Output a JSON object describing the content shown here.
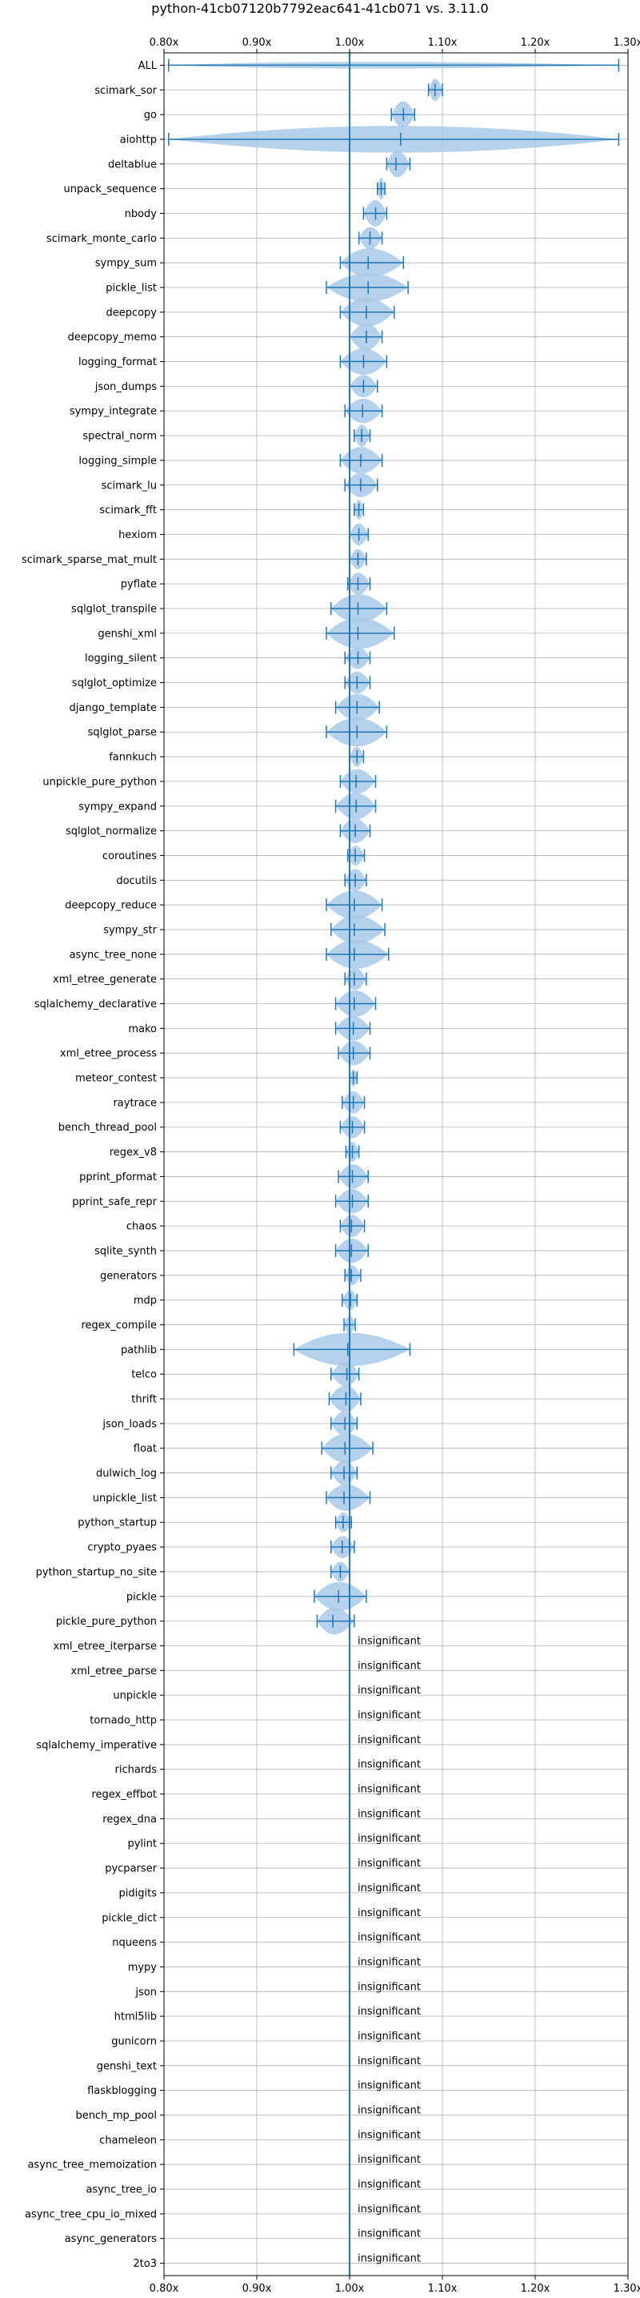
{
  "chart_data": {
    "type": "violin",
    "title": "python-41cb07120b7792eac641-41cb071 vs. 3.11.0",
    "xlim": [
      0.8,
      1.3
    ],
    "xticks": [
      0.8,
      0.9,
      1.0,
      1.1,
      1.2,
      1.3
    ],
    "xtick_labels": [
      "0.80x",
      "0.90x",
      "1.00x",
      "1.10x",
      "1.20x",
      "1.30x"
    ],
    "grid": true,
    "reference_line": 1.0,
    "colors": {
      "violin": "#a9c9e8",
      "line": "#1f77b4"
    },
    "benchmarks": [
      {
        "name": "ALL",
        "min": 0.805,
        "max": 1.29,
        "mean": 1.0,
        "width": 0.15
      },
      {
        "name": "scimark_sor",
        "min": 1.085,
        "max": 1.1,
        "mean": 1.092,
        "width": 0.5
      },
      {
        "name": "go",
        "min": 1.045,
        "max": 1.07,
        "mean": 1.058,
        "width": 0.6
      },
      {
        "name": "aiohttp",
        "min": 0.805,
        "max": 1.29,
        "mean": 1.055,
        "width": 0.6
      },
      {
        "name": "deltablue",
        "min": 1.04,
        "max": 1.065,
        "mean": 1.05,
        "width": 0.6
      },
      {
        "name": "unpack_sequence",
        "min": 1.03,
        "max": 1.038,
        "mean": 1.034,
        "width": 0.5
      },
      {
        "name": "nbody",
        "min": 1.015,
        "max": 1.04,
        "mean": 1.028,
        "width": 0.6
      },
      {
        "name": "scimark_monte_carlo",
        "min": 1.01,
        "max": 1.035,
        "mean": 1.022,
        "width": 0.5
      },
      {
        "name": "sympy_sum",
        "min": 0.99,
        "max": 1.058,
        "mean": 1.02,
        "width": 0.65
      },
      {
        "name": "pickle_list",
        "min": 0.975,
        "max": 1.063,
        "mean": 1.02,
        "width": 0.65
      },
      {
        "name": "deepcopy",
        "min": 0.99,
        "max": 1.048,
        "mean": 1.018,
        "width": 0.65
      },
      {
        "name": "deepcopy_memo",
        "min": 1.0,
        "max": 1.035,
        "mean": 1.018,
        "width": 0.6
      },
      {
        "name": "logging_format",
        "min": 0.99,
        "max": 1.04,
        "mean": 1.015,
        "width": 0.6
      },
      {
        "name": "json_dumps",
        "min": 1.0,
        "max": 1.03,
        "mean": 1.015,
        "width": 0.5
      },
      {
        "name": "sympy_integrate",
        "min": 0.995,
        "max": 1.035,
        "mean": 1.014,
        "width": 0.55
      },
      {
        "name": "spectral_norm",
        "min": 1.005,
        "max": 1.022,
        "mean": 1.013,
        "width": 0.5
      },
      {
        "name": "logging_simple",
        "min": 0.99,
        "max": 1.035,
        "mean": 1.012,
        "width": 0.6
      },
      {
        "name": "scimark_lu",
        "min": 0.995,
        "max": 1.03,
        "mean": 1.012,
        "width": 0.55
      },
      {
        "name": "scimark_fft",
        "min": 1.005,
        "max": 1.015,
        "mean": 1.01,
        "width": 0.45
      },
      {
        "name": "hexiom",
        "min": 1.0,
        "max": 1.02,
        "mean": 1.01,
        "width": 0.5
      },
      {
        "name": "scimark_sparse_mat_mult",
        "min": 1.0,
        "max": 1.018,
        "mean": 1.009,
        "width": 0.45
      },
      {
        "name": "pyflate",
        "min": 0.998,
        "max": 1.022,
        "mean": 1.009,
        "width": 0.5
      },
      {
        "name": "sqlglot_transpile",
        "min": 0.98,
        "max": 1.04,
        "mean": 1.009,
        "width": 0.65
      },
      {
        "name": "genshi_xml",
        "min": 0.975,
        "max": 1.048,
        "mean": 1.009,
        "width": 0.7
      },
      {
        "name": "logging_silent",
        "min": 0.995,
        "max": 1.022,
        "mean": 1.009,
        "width": 0.5
      },
      {
        "name": "sqlglot_optimize",
        "min": 0.995,
        "max": 1.022,
        "mean": 1.008,
        "width": 0.5
      },
      {
        "name": "django_template",
        "min": 0.985,
        "max": 1.032,
        "mean": 1.008,
        "width": 0.6
      },
      {
        "name": "sqlglot_parse",
        "min": 0.975,
        "max": 1.04,
        "mean": 1.008,
        "width": 0.65
      },
      {
        "name": "fannkuch",
        "min": 1.0,
        "max": 1.015,
        "mean": 1.008,
        "width": 0.45
      },
      {
        "name": "unpickle_pure_python",
        "min": 0.99,
        "max": 1.028,
        "mean": 1.007,
        "width": 0.55
      },
      {
        "name": "sympy_expand",
        "min": 0.985,
        "max": 1.028,
        "mean": 1.007,
        "width": 0.6
      },
      {
        "name": "sqlglot_normalize",
        "min": 0.99,
        "max": 1.022,
        "mean": 1.006,
        "width": 0.55
      },
      {
        "name": "coroutines",
        "min": 0.998,
        "max": 1.016,
        "mean": 1.006,
        "width": 0.45
      },
      {
        "name": "docutils",
        "min": 0.995,
        "max": 1.018,
        "mean": 1.006,
        "width": 0.5
      },
      {
        "name": "deepcopy_reduce",
        "min": 0.975,
        "max": 1.035,
        "mean": 1.005,
        "width": 0.65
      },
      {
        "name": "sympy_str",
        "min": 0.98,
        "max": 1.038,
        "mean": 1.005,
        "width": 0.65
      },
      {
        "name": "async_tree_none",
        "min": 0.975,
        "max": 1.042,
        "mean": 1.005,
        "width": 0.65
      },
      {
        "name": "xml_etree_generate",
        "min": 0.995,
        "max": 1.018,
        "mean": 1.005,
        "width": 0.5
      },
      {
        "name": "sqlalchemy_declarative",
        "min": 0.985,
        "max": 1.028,
        "mean": 1.005,
        "width": 0.6
      },
      {
        "name": "mako",
        "min": 0.985,
        "max": 1.022,
        "mean": 1.004,
        "width": 0.55
      },
      {
        "name": "xml_etree_process",
        "min": 0.988,
        "max": 1.022,
        "mean": 1.004,
        "width": 0.55
      },
      {
        "name": "meteor_contest",
        "min": 1.0,
        "max": 1.008,
        "mean": 1.004,
        "width": 0.4
      },
      {
        "name": "raytrace",
        "min": 0.992,
        "max": 1.016,
        "mean": 1.004,
        "width": 0.5
      },
      {
        "name": "bench_thread_pool",
        "min": 0.99,
        "max": 1.016,
        "mean": 1.003,
        "width": 0.5
      },
      {
        "name": "regex_v8",
        "min": 0.996,
        "max": 1.01,
        "mean": 1.003,
        "width": 0.45
      },
      {
        "name": "pprint_pformat",
        "min": 0.988,
        "max": 1.02,
        "mean": 1.003,
        "width": 0.55
      },
      {
        "name": "pprint_safe_repr",
        "min": 0.985,
        "max": 1.02,
        "mean": 1.003,
        "width": 0.55
      },
      {
        "name": "chaos",
        "min": 0.99,
        "max": 1.016,
        "mean": 1.002,
        "width": 0.5
      },
      {
        "name": "sqlite_synth",
        "min": 0.985,
        "max": 1.02,
        "mean": 1.002,
        "width": 0.55
      },
      {
        "name": "generators",
        "min": 0.995,
        "max": 1.012,
        "mean": 1.002,
        "width": 0.45
      },
      {
        "name": "mdp",
        "min": 0.992,
        "max": 1.008,
        "mean": 1.001,
        "width": 0.45
      },
      {
        "name": "regex_compile",
        "min": 0.994,
        "max": 1.006,
        "mean": 1.0,
        "width": 0.4
      },
      {
        "name": "pathlib",
        "min": 0.94,
        "max": 1.065,
        "mean": 0.998,
        "width": 0.75
      },
      {
        "name": "telco",
        "min": 0.98,
        "max": 1.01,
        "mean": 0.997,
        "width": 0.55
      },
      {
        "name": "thrift",
        "min": 0.978,
        "max": 1.012,
        "mean": 0.996,
        "width": 0.6
      },
      {
        "name": "json_loads",
        "min": 0.98,
        "max": 1.008,
        "mean": 0.995,
        "width": 0.55
      },
      {
        "name": "float",
        "min": 0.97,
        "max": 1.025,
        "mean": 0.995,
        "width": 0.65
      },
      {
        "name": "dulwich_log",
        "min": 0.98,
        "max": 1.008,
        "mean": 0.994,
        "width": 0.55
      },
      {
        "name": "unpickle_list",
        "min": 0.975,
        "max": 1.022,
        "mean": 0.994,
        "width": 0.6
      },
      {
        "name": "python_startup",
        "min": 0.985,
        "max": 1.002,
        "mean": 0.993,
        "width": 0.45
      },
      {
        "name": "crypto_pyaes",
        "min": 0.98,
        "max": 1.005,
        "mean": 0.992,
        "width": 0.5
      },
      {
        "name": "python_startup_no_site",
        "min": 0.98,
        "max": 1.0,
        "mean": 0.99,
        "width": 0.45
      },
      {
        "name": "pickle",
        "min": 0.962,
        "max": 1.018,
        "mean": 0.988,
        "width": 0.65
      },
      {
        "name": "pickle_pure_python",
        "min": 0.965,
        "max": 1.005,
        "mean": 0.982,
        "width": 0.6
      },
      {
        "name": "xml_etree_iterparse",
        "insignificant": true
      },
      {
        "name": "xml_etree_parse",
        "insignificant": true
      },
      {
        "name": "unpickle",
        "insignificant": true
      },
      {
        "name": "tornado_http",
        "insignificant": true
      },
      {
        "name": "sqlalchemy_imperative",
        "insignificant": true
      },
      {
        "name": "richards",
        "insignificant": true
      },
      {
        "name": "regex_effbot",
        "insignificant": true
      },
      {
        "name": "regex_dna",
        "insignificant": true
      },
      {
        "name": "pylint",
        "insignificant": true
      },
      {
        "name": "pycparser",
        "insignificant": true
      },
      {
        "name": "pidigits",
        "insignificant": true
      },
      {
        "name": "pickle_dict",
        "insignificant": true
      },
      {
        "name": "nqueens",
        "insignificant": true
      },
      {
        "name": "mypy",
        "insignificant": true
      },
      {
        "name": "json",
        "insignificant": true
      },
      {
        "name": "html5lib",
        "insignificant": true
      },
      {
        "name": "gunicorn",
        "insignificant": true
      },
      {
        "name": "genshi_text",
        "insignificant": true
      },
      {
        "name": "flaskblogging",
        "insignificant": true
      },
      {
        "name": "bench_mp_pool",
        "insignificant": true
      },
      {
        "name": "chameleon",
        "insignificant": true
      },
      {
        "name": "async_tree_memoization",
        "insignificant": true
      },
      {
        "name": "async_tree_io",
        "insignificant": true
      },
      {
        "name": "async_tree_cpu_io_mixed",
        "insignificant": true
      },
      {
        "name": "async_generators",
        "insignificant": true
      },
      {
        "name": "2to3",
        "insignificant": true
      }
    ],
    "insignificant_label": "insignificant"
  }
}
